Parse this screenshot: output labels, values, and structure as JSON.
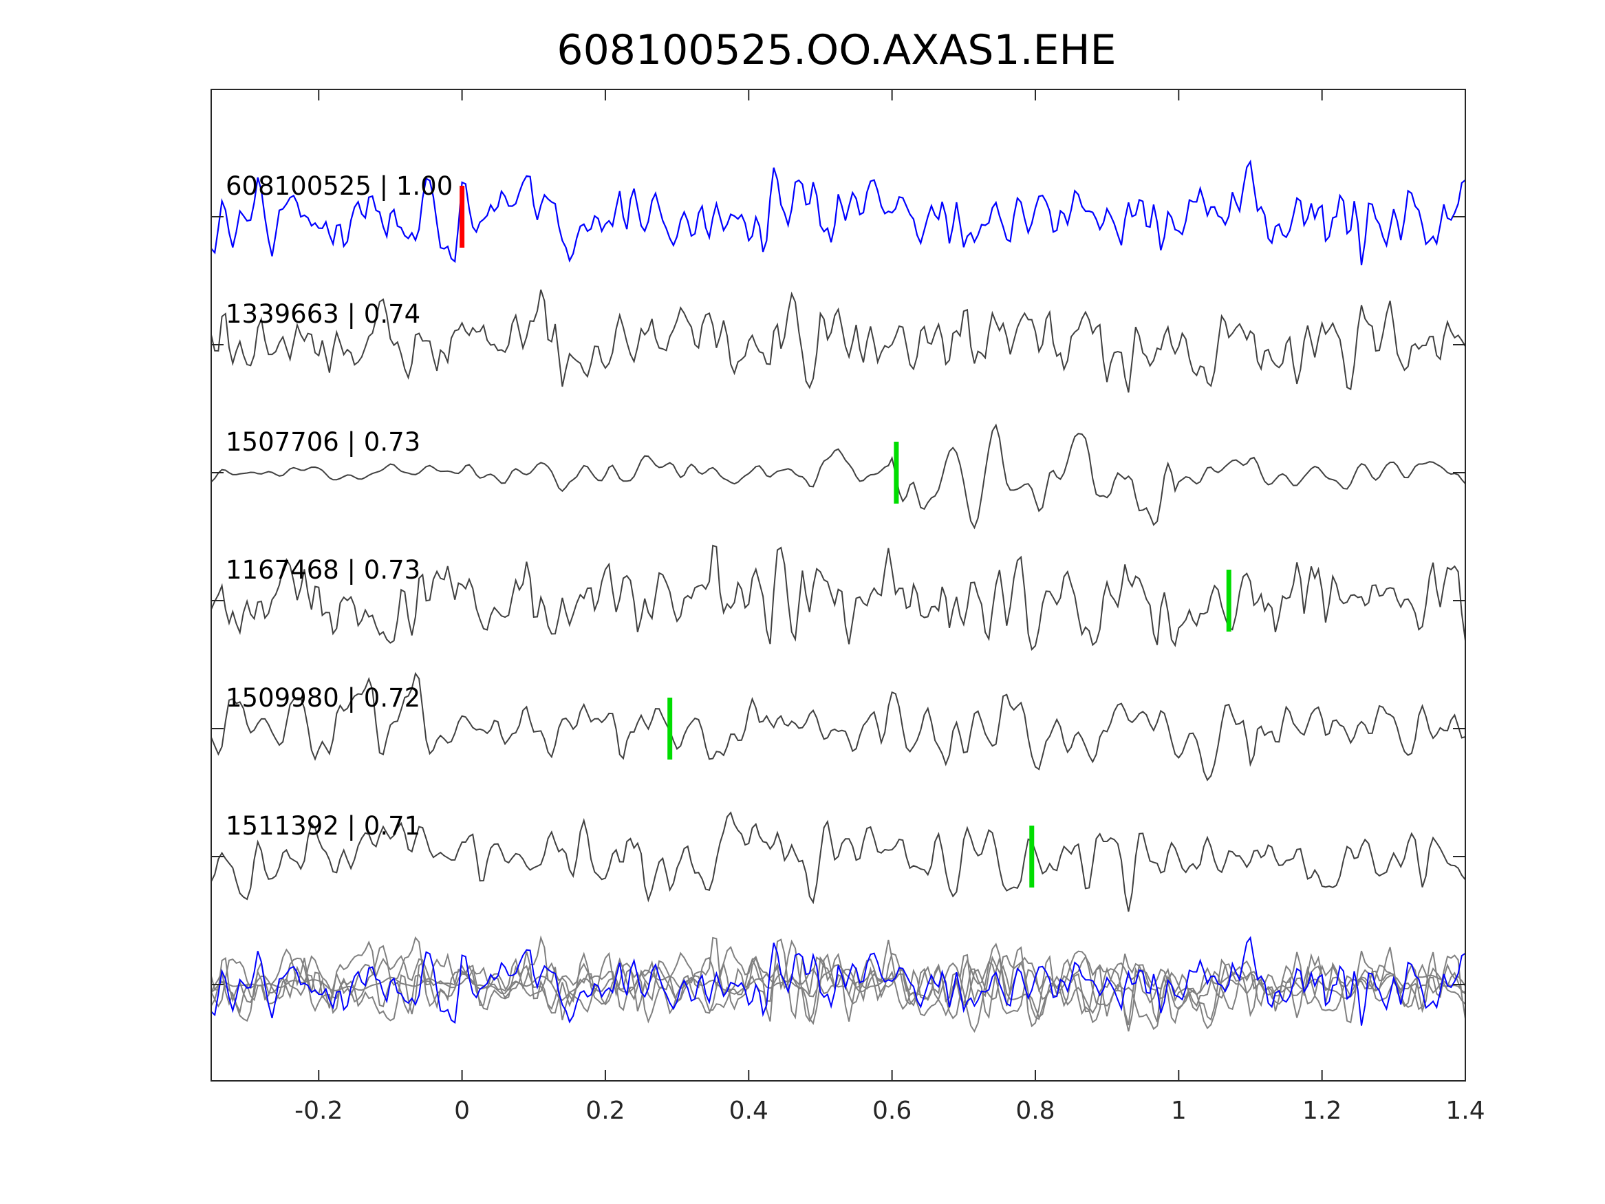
{
  "chart_data": {
    "type": "line",
    "title": "608100525.OO.AXAS1.EHE",
    "xlabel": "",
    "ylabel": "",
    "xlim": [
      -0.35,
      1.4
    ],
    "xticks": [
      -0.2,
      0,
      0.2,
      0.4,
      0.6,
      0.8,
      1,
      1.2,
      1.4
    ],
    "xtick_labels": [
      "-0.2",
      "0",
      "0.2",
      "0.4",
      "0.6",
      "0.8",
      "1",
      "1.2",
      "1.4"
    ],
    "grid": false,
    "series": [
      {
        "name": "608100525",
        "cc": "1.00",
        "label": "608100525 | 1.00",
        "color": "#0000ff",
        "pick_time": 0.0,
        "pick_color": "#ff0000",
        "style": "noisy"
      },
      {
        "name": "1339663",
        "cc": "0.74",
        "label": "1339663 | 0.74",
        "color": "#404040",
        "pick_time": null,
        "style": "noisy"
      },
      {
        "name": "1507706",
        "cc": "0.73",
        "label": "1507706 | 0.73",
        "color": "#404040",
        "pick_time": 0.606,
        "pick_color": "#00dd00",
        "style": "smooth"
      },
      {
        "name": "1167468",
        "cc": "0.73",
        "label": "1167468 | 0.73",
        "color": "#404040",
        "pick_time": 1.07,
        "pick_color": "#00dd00",
        "style": "noisy"
      },
      {
        "name": "1509980",
        "cc": "0.72",
        "label": "1509980 | 0.72",
        "color": "#404040",
        "pick_time": 0.29,
        "pick_color": "#00dd00",
        "style": "medium"
      },
      {
        "name": "1511392",
        "cc": "0.71",
        "label": "1511392 | 0.71",
        "color": "#404040",
        "pick_time": 0.795,
        "pick_color": "#00dd00",
        "style": "medium"
      }
    ],
    "stack": {
      "description_visible": false,
      "others_color": "#808080",
      "reference_color": "#0000ff"
    }
  }
}
